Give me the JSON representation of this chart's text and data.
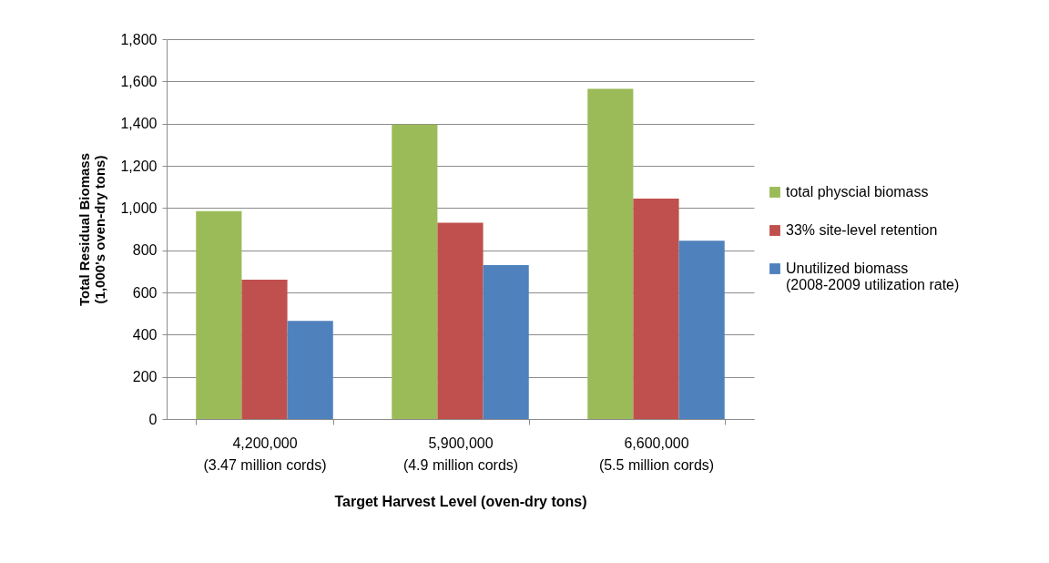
{
  "chart_data": {
    "type": "bar",
    "xlabel": "Target Harvest Level (oven-dry tons)",
    "ylabel": "Total Residual  Biomass\n(1,000's oven-dry tons)",
    "categories": [
      "4,200,000\n(3.47 million cords)",
      "5,900,000\n(4.9 million cords)",
      "6,600,000\n(5.5 million cords)"
    ],
    "series": [
      {
        "name": "total physcial biomass",
        "color": "#9bbb59",
        "values": [
          985,
          1395,
          1565
        ]
      },
      {
        "name": "33% site-level retention",
        "color": "#c0504d",
        "values": [
          660,
          930,
          1045
        ]
      },
      {
        "name": "Unutilized biomass\n(2008-2009 utilization rate)",
        "color": "#4f81bd",
        "values": [
          465,
          730,
          845
        ]
      }
    ],
    "ylim": [
      0,
      1800
    ],
    "yticks": [
      0,
      200,
      400,
      600,
      800,
      {
        "value": 1000,
        "label": "1,000"
      },
      {
        "value": 1200,
        "label": "1,200"
      },
      {
        "value": 1400,
        "label": "1,400"
      },
      {
        "value": 1600,
        "label": "1,600"
      },
      {
        "value": 1800,
        "label": "1,800"
      }
    ],
    "grid": "y",
    "legend": "right"
  }
}
